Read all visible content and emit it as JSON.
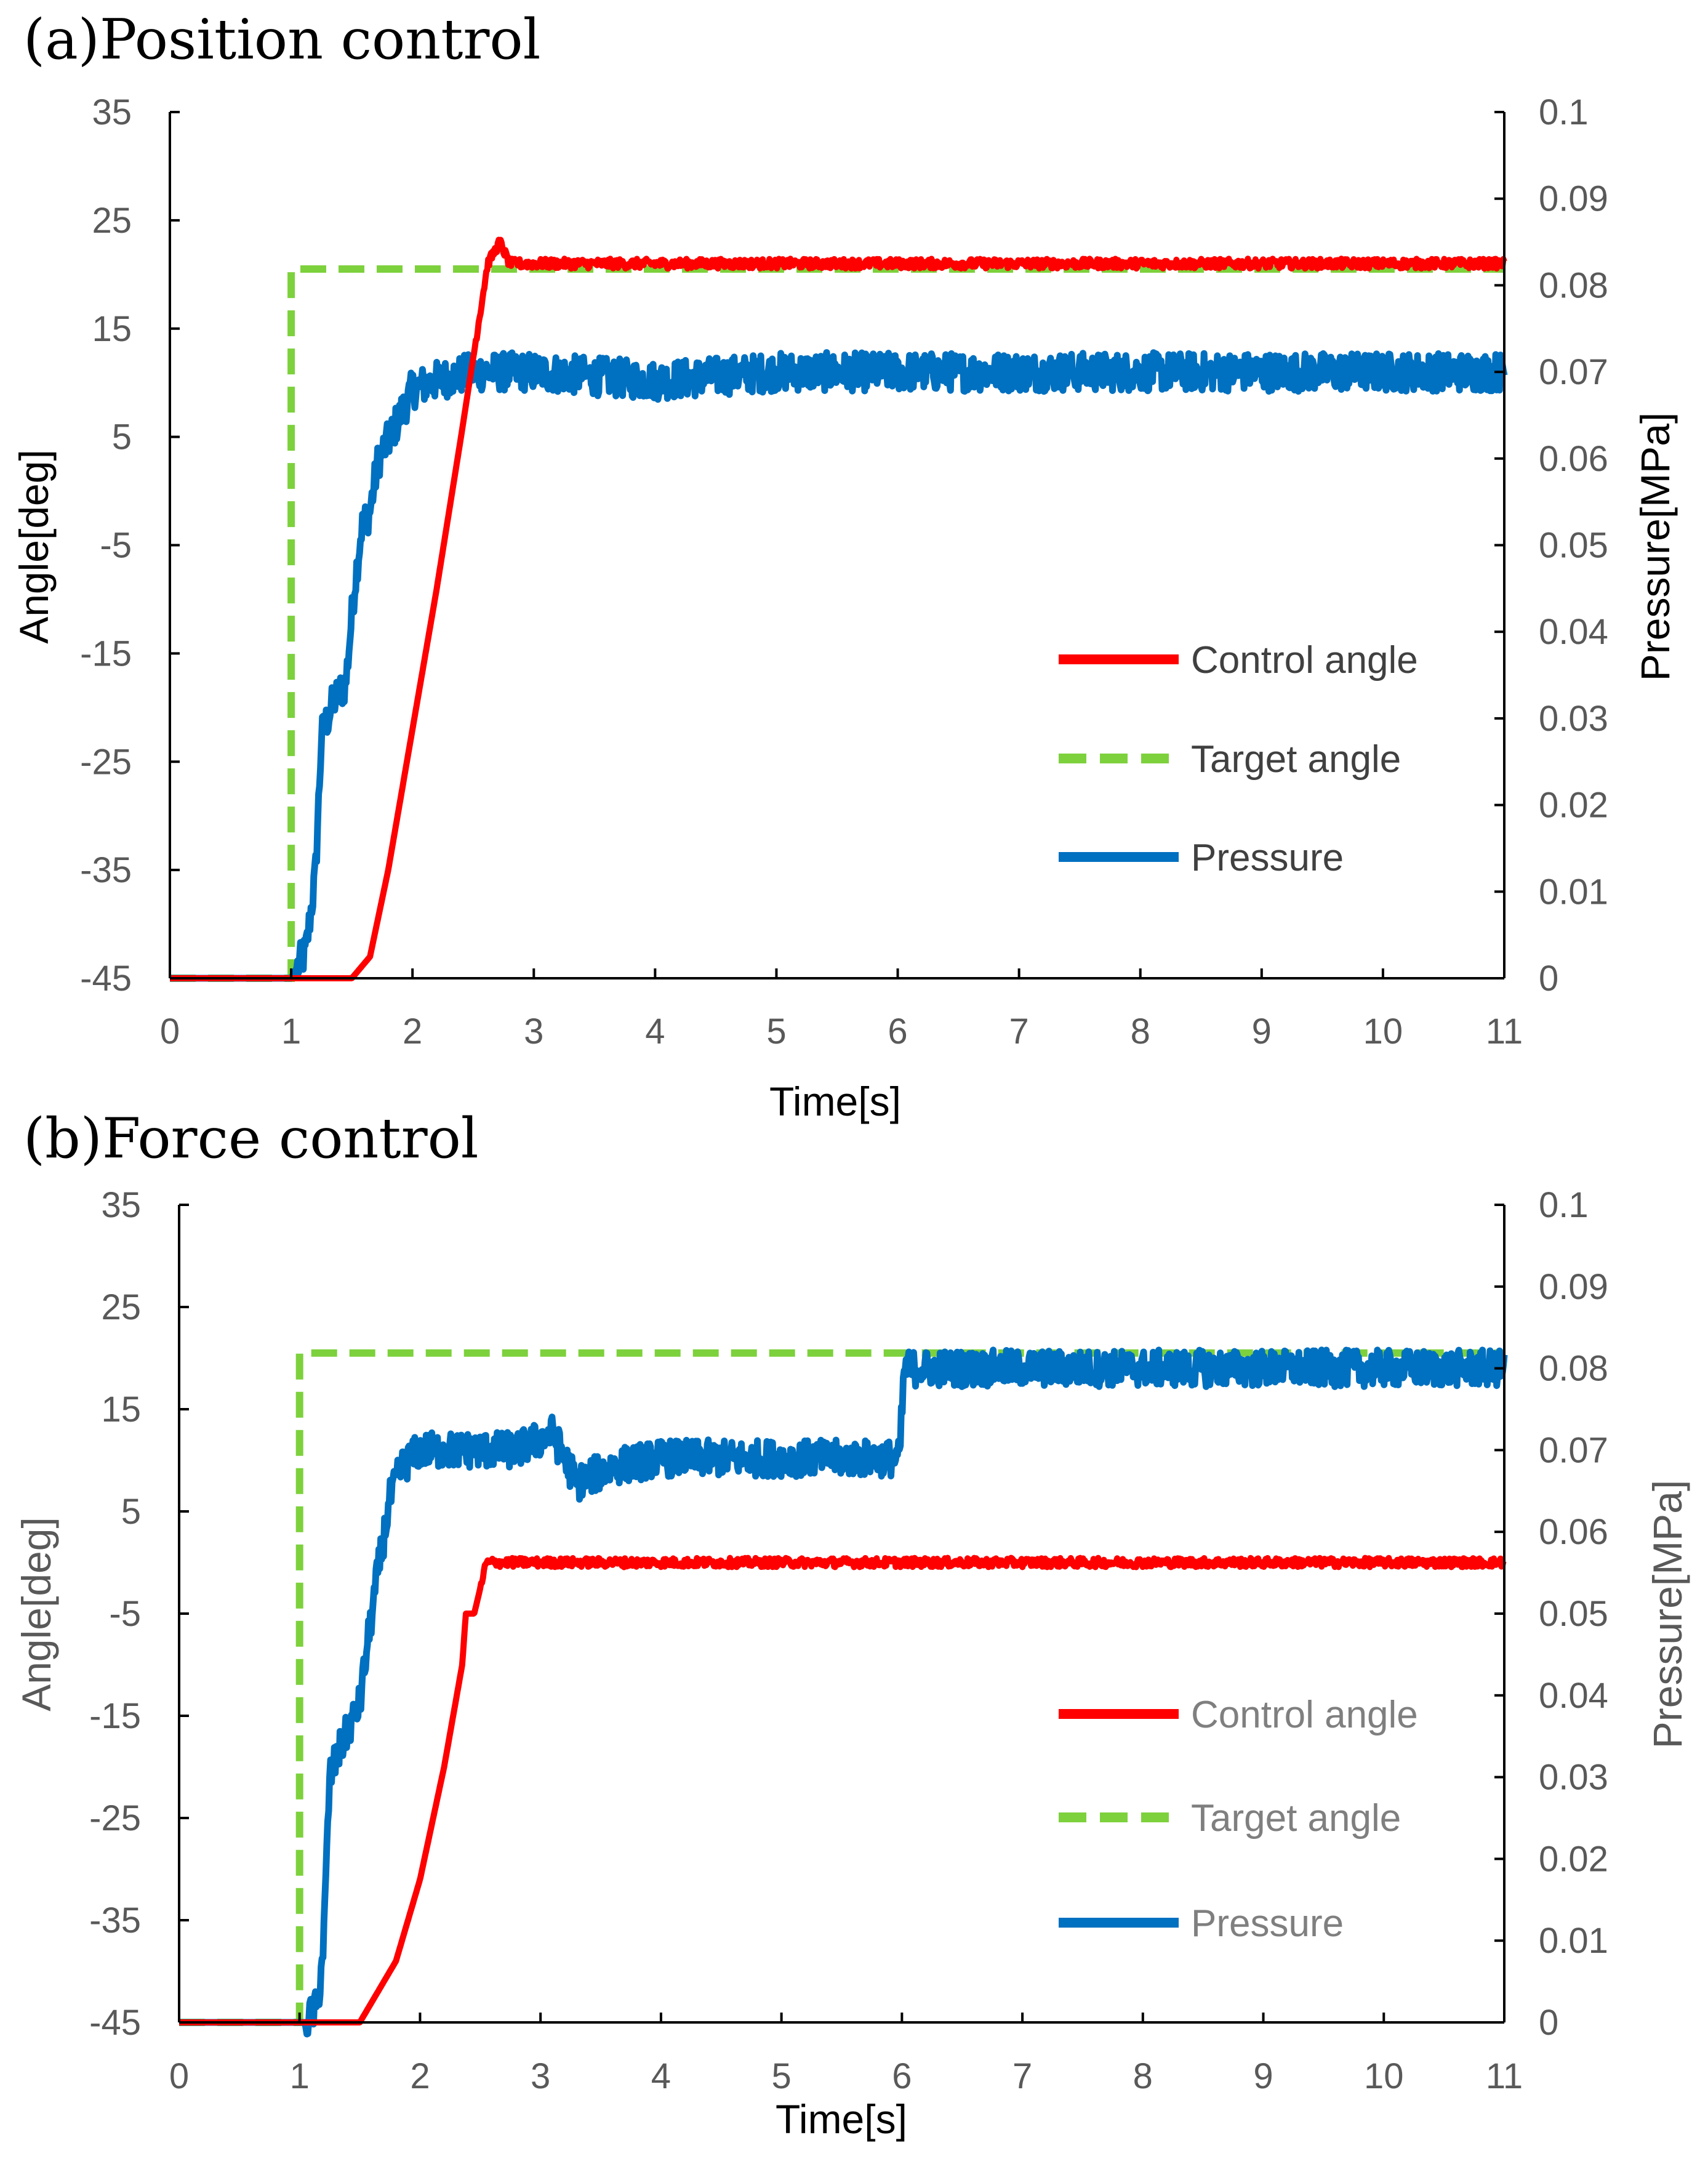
{
  "colors": {
    "control_angle": "#ff0000",
    "target_angle": "#7dd13c",
    "pressure": "#0070c0",
    "axis": "#000000"
  },
  "chart_data": [
    {
      "type": "line",
      "title": "(a)Position control",
      "xlabel": "Time[s]",
      "ylabel": "Angle[deg]",
      "y2label": "Pressure[MPa]",
      "xlim": [
        0,
        11
      ],
      "ylim": [
        -45,
        35
      ],
      "y2lim": [
        0,
        0.1
      ],
      "x_ticks": [
        "0",
        "1",
        "2",
        "3",
        "4",
        "5",
        "6",
        "7",
        "8",
        "9",
        "10",
        "11"
      ],
      "y_ticks": [
        "35",
        "25",
        "15",
        "5",
        "-5",
        "-15",
        "-25",
        "-35",
        "-45"
      ],
      "y2_ticks": [
        "0.1",
        "0.09",
        "0.08",
        "0.07",
        "0.06",
        "0.05",
        "0.04",
        "0.03",
        "0.02",
        "0.01",
        "0"
      ],
      "legend": [
        "Control angle",
        "Target angle",
        "Pressure"
      ],
      "legend_position": "right",
      "series": [
        {
          "name": "Control angle",
          "axis": "left",
          "style": "solid",
          "x": [
            0,
            1.0,
            1.5,
            1.65,
            1.8,
            2.0,
            2.2,
            2.4,
            2.62,
            2.72,
            2.8,
            3.0,
            11
          ],
          "y": [
            -45,
            -45,
            -45,
            -43,
            -35,
            -22,
            -9,
            5,
            21,
            23,
            21,
            21,
            21
          ]
        },
        {
          "name": "Target angle",
          "axis": "left",
          "style": "dashed",
          "x": [
            0,
            1.0,
            1.0,
            11
          ],
          "y": [
            -45,
            -45,
            20.5,
            20.5
          ]
        },
        {
          "name": "Pressure",
          "axis": "right",
          "style": "solid",
          "x": [
            0,
            1.0,
            1.12,
            1.2,
            1.25,
            1.35,
            1.45,
            1.52,
            1.58,
            1.65,
            1.72,
            1.8,
            1.9,
            2.0,
            2.2,
            2.5,
            3.0,
            4.0,
            5.0,
            6.0,
            7.0,
            8.0,
            9.0,
            10.0,
            11
          ],
          "y": [
            0,
            0,
            0.003,
            0.012,
            0.028,
            0.032,
            0.034,
            0.045,
            0.052,
            0.054,
            0.06,
            0.062,
            0.065,
            0.068,
            0.069,
            0.07,
            0.07,
            0.069,
            0.07,
            0.07,
            0.07,
            0.07,
            0.07,
            0.07,
            0.07
          ]
        }
      ]
    },
    {
      "type": "line",
      "title": "(b)Force control",
      "xlabel": "Time[s]",
      "ylabel": "Angle[deg]",
      "y2label": "Pressure[MPa]",
      "xlim": [
        0,
        11
      ],
      "ylim": [
        -45,
        35
      ],
      "y2lim": [
        0,
        0.1
      ],
      "x_ticks": [
        "0",
        "1",
        "2",
        "3",
        "4",
        "5",
        "6",
        "7",
        "8",
        "9",
        "10",
        "11"
      ],
      "y_ticks": [
        "35",
        "25",
        "15",
        "5",
        "-5",
        "-15",
        "-25",
        "-35",
        "-45"
      ],
      "y2_ticks": [
        "0.1",
        "0.09",
        "0.08",
        "0.07",
        "0.06",
        "0.05",
        "0.04",
        "0.03",
        "0.02",
        "0.01",
        "0"
      ],
      "legend": [
        "Control angle",
        "Target angle",
        "Pressure"
      ],
      "legend_position": "right",
      "series": [
        {
          "name": "Control angle",
          "axis": "left",
          "style": "solid",
          "x": [
            0,
            1.0,
            1.5,
            1.6,
            1.8,
            2.0,
            2.2,
            2.35,
            2.38,
            2.45,
            2.55,
            2.65,
            11
          ],
          "y": [
            -45,
            -45,
            -45,
            -43,
            -39,
            -31,
            -20,
            -10,
            -5,
            -5,
            0,
            0,
            0
          ]
        },
        {
          "name": "Target angle",
          "axis": "left",
          "style": "dashed",
          "x": [
            0,
            1.0,
            1.0,
            11
          ],
          "y": [
            -45,
            -45,
            20.5,
            20.5
          ]
        },
        {
          "name": "Pressure",
          "axis": "right",
          "style": "solid",
          "x": [
            0,
            1.05,
            1.15,
            1.2,
            1.25,
            1.35,
            1.5,
            1.58,
            1.65,
            1.75,
            1.85,
            2.0,
            2.3,
            2.8,
            3.1,
            3.3,
            3.6,
            4.0,
            5.0,
            5.98,
            6.02,
            7.0,
            8.0,
            9.0,
            10.0,
            11
          ],
          "y": [
            0,
            0,
            0.002,
            0.01,
            0.03,
            0.034,
            0.039,
            0.048,
            0.055,
            0.064,
            0.068,
            0.07,
            0.07,
            0.07,
            0.072,
            0.066,
            0.068,
            0.069,
            0.069,
            0.069,
            0.08,
            0.08,
            0.08,
            0.08,
            0.08,
            0.08
          ]
        }
      ]
    }
  ]
}
